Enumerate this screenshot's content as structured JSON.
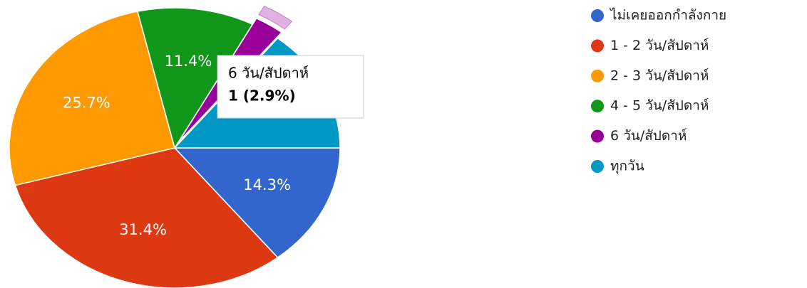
{
  "chart_data": {
    "type": "pie",
    "categories": [
      "ไม่เคยออกกำลังกาย",
      "1 - 2 วัน/สัปดาห์",
      "2 - 3 วัน/สัปดาห์",
      "4 - 5 วัน/สัปดาห์",
      "6 วัน/สัปดาห์",
      "ทุกวัน"
    ],
    "values": [
      14.3,
      31.4,
      25.7,
      11.4,
      2.9,
      14.3
    ],
    "value_labels": [
      "14.3%",
      "31.4%",
      "25.7%",
      "11.4%",
      null,
      null
    ],
    "colors": [
      "#3366cc",
      "#dc3912",
      "#ff9900",
      "#109618",
      "#990099",
      "#0099c6"
    ],
    "legend": "right",
    "highlighted": 4,
    "tooltip": {
      "value_label": "1 (2.9%)"
    }
  }
}
